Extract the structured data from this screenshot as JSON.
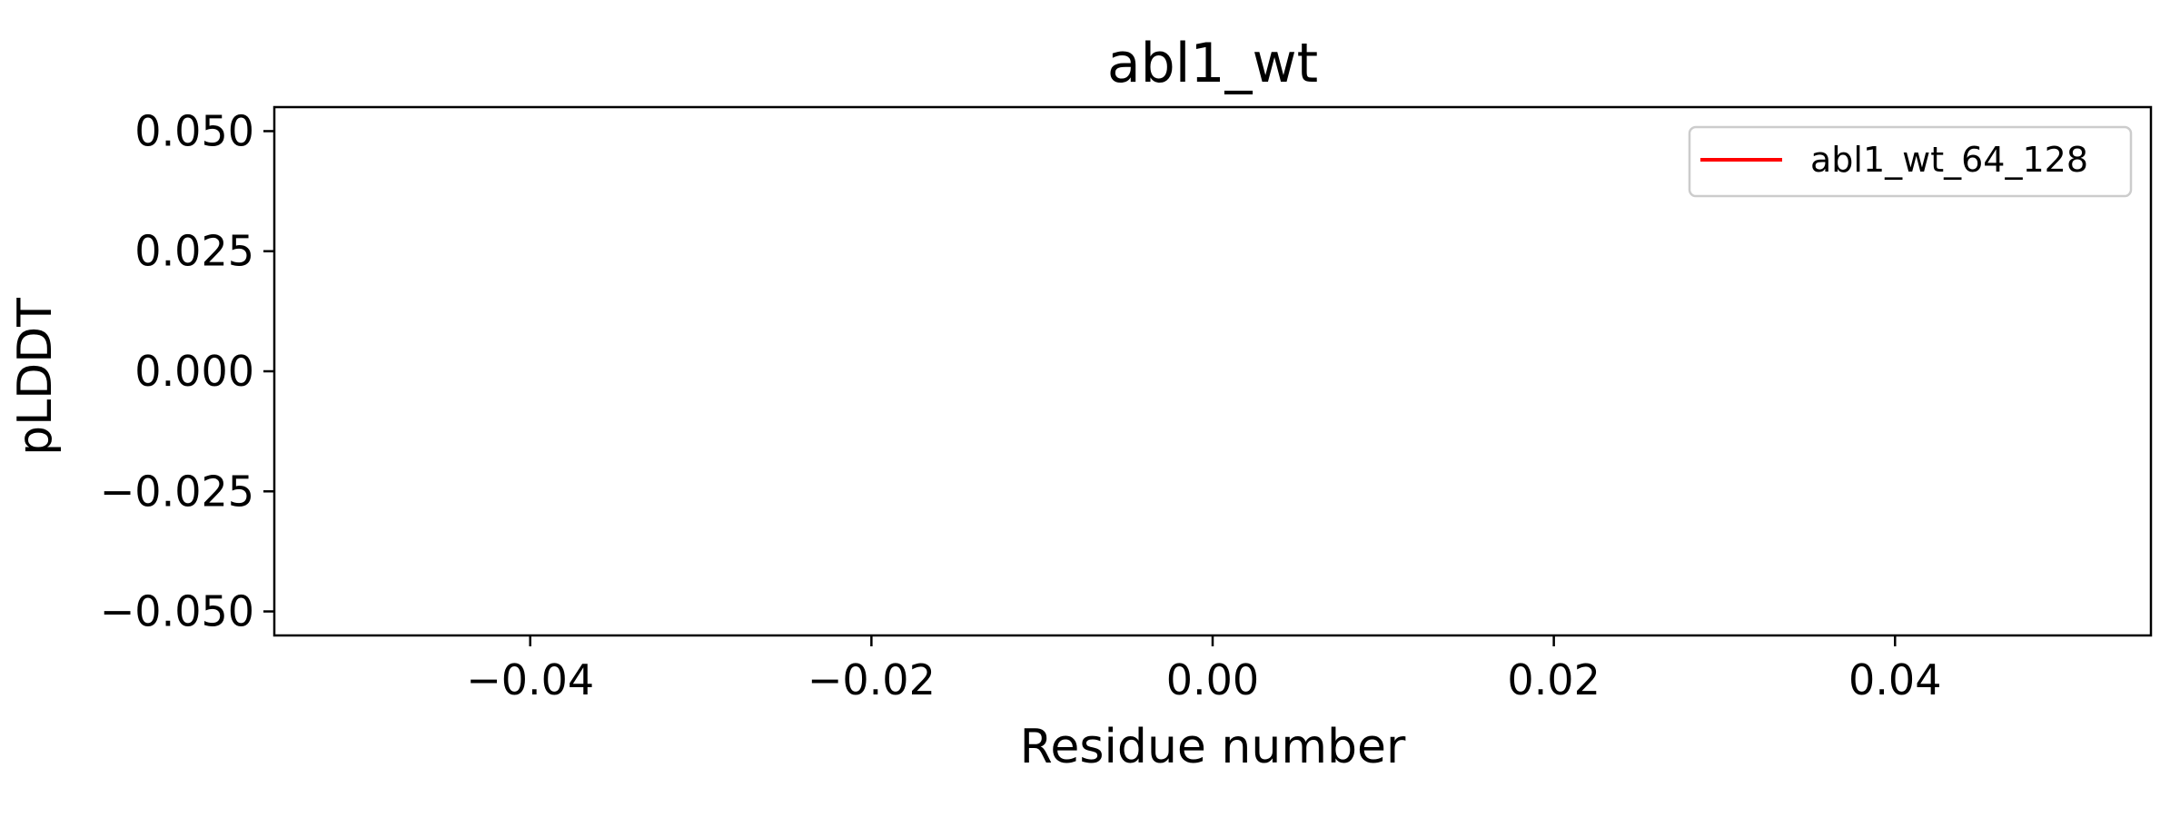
{
  "chart_data": {
    "type": "line",
    "title": "abl1_wt",
    "xlabel": "Residue number",
    "ylabel": "pLDDT",
    "xlim": [
      -0.055,
      0.055
    ],
    "ylim": [
      -0.055,
      0.055
    ],
    "xticks": [
      -0.04,
      -0.02,
      0.0,
      0.02,
      0.04
    ],
    "xtick_labels": [
      "−0.04",
      "−0.02",
      "0.00",
      "0.02",
      "0.04"
    ],
    "yticks": [
      0.05,
      0.025,
      0.0,
      -0.025,
      -0.05
    ],
    "ytick_labels": [
      "0.050",
      "0.025",
      "0.000",
      "−0.025",
      "−0.050"
    ],
    "grid": false,
    "legend_position": "top-right",
    "series": [
      {
        "name": "abl1_wt_64_128",
        "color": "#ff0000",
        "x": [],
        "y": []
      }
    ]
  }
}
